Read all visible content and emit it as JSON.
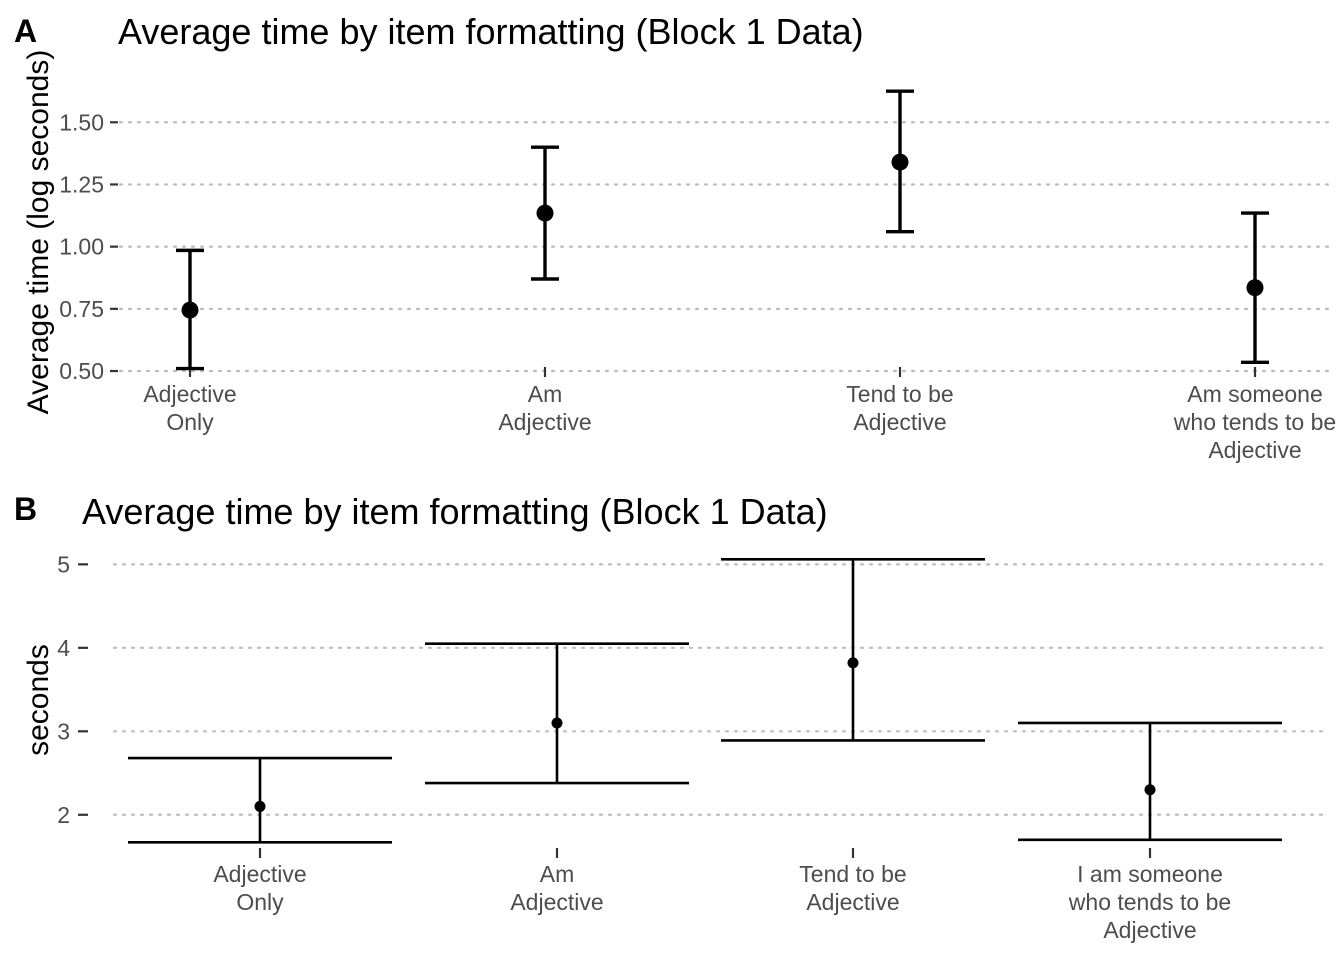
{
  "chart_data": [
    {
      "panel_label": "A",
      "type": "scatter",
      "title": "Average time by item formatting (Block 1 Data)",
      "xlabel": "",
      "ylabel": "Average time (log seconds)",
      "grid": "horizontal-dotted",
      "ylim": [
        0.48,
        1.67
      ],
      "yticks": [
        "0.50",
        "0.75",
        "1.00",
        "1.25",
        "1.50"
      ],
      "categories": [
        [
          "Adjective",
          "Only"
        ],
        [
          "Am",
          "Adjective"
        ],
        [
          "Tend to be",
          "Adjective"
        ],
        [
          "Am someone",
          "who tends to be",
          "Adjective"
        ]
      ],
      "values": [
        0.745,
        1.135,
        1.34,
        0.835
      ],
      "lower": [
        0.51,
        0.87,
        1.06,
        0.535
      ],
      "upper": [
        0.985,
        1.4,
        1.625,
        1.135
      ]
    },
    {
      "panel_label": "B",
      "type": "scatter",
      "title": "Average time by item formatting (Block 1 Data)",
      "xlabel": "",
      "ylabel": "seconds",
      "grid": "horizontal-dotted",
      "ylim": [
        1.65,
        5.1
      ],
      "yticks": [
        "2",
        "3",
        "4",
        "5"
      ],
      "categories": [
        [
          "Adjective",
          "Only"
        ],
        [
          "Am",
          "Adjective"
        ],
        [
          "Tend to be",
          "Adjective"
        ],
        [
          "I am someone",
          "who tends to be",
          "Adjective"
        ]
      ],
      "values": [
        2.1,
        3.1,
        3.82,
        2.3
      ],
      "lower": [
        1.67,
        2.38,
        2.89,
        1.7
      ],
      "upper": [
        2.68,
        4.05,
        5.06,
        3.1
      ]
    }
  ]
}
